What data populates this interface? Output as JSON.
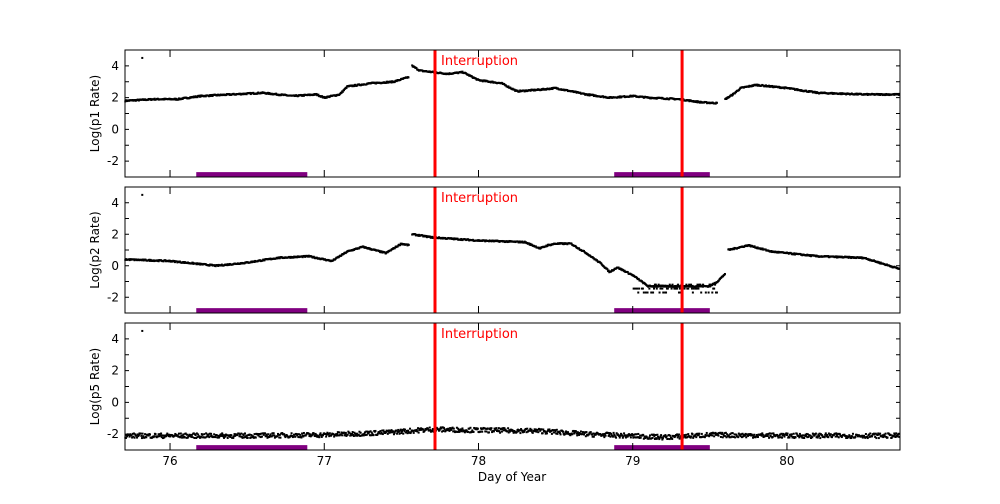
{
  "chart_data": {
    "type": "scatter",
    "xlabel": "Day of Year",
    "xlim": [
      75.708,
      80.733
    ],
    "xticks": [
      76,
      77,
      78,
      79,
      80
    ],
    "xtick_labels": [
      "76",
      "77",
      "78",
      "79",
      "80"
    ],
    "grid": false,
    "colors": {
      "points": "#000000",
      "interruption": "#ff0000",
      "interval": "#800080"
    },
    "interruption_label": "Interruption",
    "interruptions": [
      77.718,
      79.32
    ],
    "intervals": [
      [
        76.17,
        76.89
      ],
      [
        78.88,
        79.5
      ]
    ],
    "panels": [
      {
        "ylabel": "Log(p1 Rate)",
        "ylim": [
          -3,
          5
        ],
        "yticks": [
          -2,
          0,
          2,
          4
        ],
        "ytick_labels": [
          "-2",
          "0",
          "2",
          "4"
        ],
        "outliers": [
          [
            75.82,
            4.5
          ]
        ],
        "points": [
          [
            75.71,
            1.8
          ],
          [
            75.9,
            1.9
          ],
          [
            76.05,
            1.9
          ],
          [
            76.2,
            2.1
          ],
          [
            76.5,
            2.25
          ],
          [
            76.6,
            2.3
          ],
          [
            76.8,
            2.1
          ],
          [
            76.95,
            2.2
          ],
          [
            77.0,
            2.0
          ],
          [
            77.1,
            2.2
          ],
          [
            77.15,
            2.7
          ],
          [
            77.3,
            2.9
          ],
          [
            77.45,
            3.0
          ],
          [
            77.55,
            3.3
          ],
          null,
          [
            77.57,
            4.0
          ],
          [
            77.62,
            3.7
          ],
          [
            77.8,
            3.5
          ],
          [
            77.9,
            3.6
          ],
          [
            78.0,
            3.1
          ],
          [
            78.15,
            2.9
          ],
          [
            78.25,
            2.4
          ],
          [
            78.4,
            2.5
          ],
          [
            78.5,
            2.6
          ],
          [
            78.7,
            2.2
          ],
          [
            78.85,
            2.0
          ],
          [
            79.0,
            2.1
          ],
          [
            79.1,
            2.0
          ],
          [
            79.3,
            1.9
          ],
          [
            79.45,
            1.7
          ],
          [
            79.55,
            1.65
          ],
          null,
          [
            79.6,
            1.9
          ],
          [
            79.65,
            2.2
          ],
          [
            79.7,
            2.6
          ],
          [
            79.8,
            2.8
          ],
          [
            80.0,
            2.6
          ],
          [
            80.2,
            2.3
          ],
          [
            80.5,
            2.2
          ],
          [
            80.73,
            2.2
          ]
        ]
      },
      {
        "ylabel": "Log(p2 Rate)",
        "ylim": [
          -3,
          5
        ],
        "yticks": [
          -2,
          0,
          2,
          4
        ],
        "ytick_labels": [
          "-2",
          "0",
          "2",
          "4"
        ],
        "outliers": [
          [
            75.82,
            4.5
          ]
        ],
        "points": [
          [
            75.71,
            0.4
          ],
          [
            76.0,
            0.3
          ],
          [
            76.3,
            0.0
          ],
          [
            76.5,
            0.2
          ],
          [
            76.7,
            0.5
          ],
          [
            76.9,
            0.6
          ],
          [
            77.05,
            0.3
          ],
          [
            77.15,
            0.9
          ],
          [
            77.25,
            1.2
          ],
          [
            77.4,
            0.8
          ],
          [
            77.5,
            1.4
          ],
          [
            77.55,
            1.3
          ],
          null,
          [
            77.57,
            2.0
          ],
          [
            77.7,
            1.8
          ],
          [
            78.0,
            1.6
          ],
          [
            78.3,
            1.5
          ],
          [
            78.4,
            1.1
          ],
          [
            78.45,
            1.3
          ],
          [
            78.5,
            1.4
          ],
          [
            78.6,
            1.4
          ],
          [
            78.7,
            0.8
          ],
          [
            78.8,
            0.1
          ],
          [
            78.85,
            -0.4
          ],
          [
            78.9,
            -0.1
          ],
          [
            79.0,
            -0.6
          ],
          [
            79.1,
            -1.3
          ],
          [
            79.3,
            -1.3
          ],
          [
            79.5,
            -1.3
          ],
          [
            79.55,
            -1.0
          ],
          [
            79.6,
            -0.5
          ],
          null,
          [
            79.62,
            1.0
          ],
          [
            79.75,
            1.3
          ],
          [
            79.9,
            0.9
          ],
          [
            80.2,
            0.6
          ],
          [
            80.5,
            0.5
          ],
          [
            80.73,
            -0.2
          ]
        ],
        "scatter_band": {
          "x": [
            79.0,
            79.55
          ],
          "y": [
            -1.7,
            -1.2
          ]
        }
      },
      {
        "ylabel": "Log(p5 Rate)",
        "ylim": [
          -3,
          5
        ],
        "yticks": [
          -2,
          0,
          2,
          4
        ],
        "ytick_labels": [
          "-2",
          "0",
          "2",
          "4"
        ],
        "outliers": [
          [
            75.82,
            4.5
          ]
        ],
        "points": [
          [
            75.71,
            -2.1
          ],
          [
            76.5,
            -2.1
          ],
          [
            77.0,
            -2.05
          ],
          [
            77.4,
            -1.9
          ],
          [
            77.7,
            -1.7
          ],
          [
            78.0,
            -1.75
          ],
          [
            78.4,
            -1.8
          ],
          [
            78.7,
            -2.0
          ],
          [
            79.2,
            -2.2
          ],
          [
            79.5,
            -2.05
          ],
          [
            80.0,
            -2.1
          ],
          [
            80.73,
            -2.1
          ]
        ],
        "noise": 0.15
      }
    ]
  }
}
